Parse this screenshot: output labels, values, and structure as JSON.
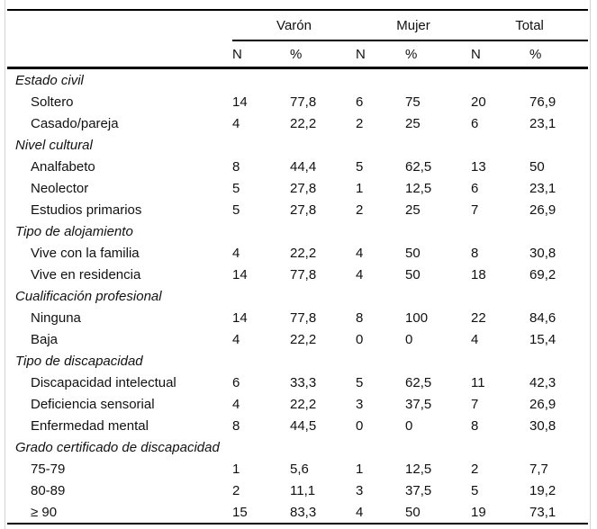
{
  "colors": {
    "rule": "#000000",
    "frame_border": "#d4d4d4",
    "text": "#111111",
    "background": "#ffffff"
  },
  "table": {
    "groups": [
      "Varón",
      "Mujer",
      "Total"
    ],
    "subheaders": [
      "N",
      "%",
      "N",
      "%",
      "N",
      "%"
    ],
    "sections": [
      {
        "title": "Estado civil",
        "rows": [
          {
            "label": "Soltero",
            "values": [
              "14",
              "77,8",
              "6",
              "75",
              "20",
              "76,9"
            ]
          },
          {
            "label": "Casado/pareja",
            "values": [
              "4",
              "22,2",
              "2",
              "25",
              "6",
              "23,1"
            ]
          }
        ]
      },
      {
        "title": "Nivel cultural",
        "rows": [
          {
            "label": "Analfabeto",
            "values": [
              "8",
              "44,4",
              "5",
              "62,5",
              "13",
              "50"
            ]
          },
          {
            "label": "Neolector",
            "values": [
              "5",
              "27,8",
              "1",
              "12,5",
              "6",
              "23,1"
            ]
          },
          {
            "label": "Estudios primarios",
            "values": [
              "5",
              "27,8",
              "2",
              "25",
              "7",
              "26,9"
            ]
          }
        ]
      },
      {
        "title": "Tipo de alojamiento",
        "rows": [
          {
            "label": "Vive con la familia",
            "values": [
              "4",
              "22,2",
              "4",
              "50",
              "8",
              "30,8"
            ]
          },
          {
            "label": "Vive en residencia",
            "values": [
              "14",
              "77,8",
              "4",
              "50",
              "18",
              "69,2"
            ]
          }
        ]
      },
      {
        "title": "Cualificación profesional",
        "rows": [
          {
            "label": "Ninguna",
            "values": [
              "14",
              "77,8",
              "8",
              "100",
              "22",
              "84,6"
            ]
          },
          {
            "label": "Baja",
            "values": [
              "4",
              "22,2",
              "0",
              "0",
              "4",
              "15,4"
            ]
          }
        ]
      },
      {
        "title": "Tipo de discapacidad",
        "rows": [
          {
            "label": "Discapacidad intelectual",
            "values": [
              "6",
              "33,3",
              "5",
              "62,5",
              "11",
              "42,3"
            ]
          },
          {
            "label": "Deficiencia sensorial",
            "values": [
              "4",
              "22,2",
              "3",
              "37,5",
              "7",
              "26,9"
            ]
          },
          {
            "label": "Enfermedad mental",
            "values": [
              "8",
              "44,5",
              "0",
              "0",
              "8",
              "30,8"
            ]
          }
        ]
      },
      {
        "title": "Grado certificado de discapacidad",
        "rows": [
          {
            "label": "75-79",
            "values": [
              "1",
              "5,6",
              "1",
              "12,5",
              "2",
              "7,7"
            ]
          },
          {
            "label": "80-89",
            "values": [
              "2",
              "11,1",
              "3",
              "37,5",
              "5",
              "19,2"
            ]
          },
          {
            "label": "≥ 90",
            "values": [
              "15",
              "83,3",
              "4",
              "50",
              "19",
              "73,1"
            ]
          }
        ]
      }
    ]
  },
  "chart_data": {
    "type": "table",
    "title": "",
    "column_groups": [
      "Varón",
      "Mujer",
      "Total"
    ],
    "columns": [
      "Varón N",
      "Varón %",
      "Mujer N",
      "Mujer %",
      "Total N",
      "Total %"
    ],
    "rows": [
      {
        "section": "Estado civil",
        "label": "Soltero",
        "values": [
          14,
          77.8,
          6,
          75,
          20,
          76.9
        ]
      },
      {
        "section": "Estado civil",
        "label": "Casado/pareja",
        "values": [
          4,
          22.2,
          2,
          25,
          6,
          23.1
        ]
      },
      {
        "section": "Nivel cultural",
        "label": "Analfabeto",
        "values": [
          8,
          44.4,
          5,
          62.5,
          13,
          50
        ]
      },
      {
        "section": "Nivel cultural",
        "label": "Neolector",
        "values": [
          5,
          27.8,
          1,
          12.5,
          6,
          23.1
        ]
      },
      {
        "section": "Nivel cultural",
        "label": "Estudios primarios",
        "values": [
          5,
          27.8,
          2,
          25,
          7,
          26.9
        ]
      },
      {
        "section": "Tipo de alojamiento",
        "label": "Vive con la familia",
        "values": [
          4,
          22.2,
          4,
          50,
          8,
          30.8
        ]
      },
      {
        "section": "Tipo de alojamiento",
        "label": "Vive en residencia",
        "values": [
          14,
          77.8,
          4,
          50,
          18,
          69.2
        ]
      },
      {
        "section": "Cualificación profesional",
        "label": "Ninguna",
        "values": [
          14,
          77.8,
          8,
          100,
          22,
          84.6
        ]
      },
      {
        "section": "Cualificación profesional",
        "label": "Baja",
        "values": [
          4,
          22.2,
          0,
          0,
          4,
          15.4
        ]
      },
      {
        "section": "Tipo de discapacidad",
        "label": "Discapacidad intelectual",
        "values": [
          6,
          33.3,
          5,
          62.5,
          11,
          42.3
        ]
      },
      {
        "section": "Tipo de discapacidad",
        "label": "Deficiencia sensorial",
        "values": [
          4,
          22.2,
          3,
          37.5,
          7,
          26.9
        ]
      },
      {
        "section": "Tipo de discapacidad",
        "label": "Enfermedad mental",
        "values": [
          8,
          44.5,
          0,
          0,
          8,
          30.8
        ]
      },
      {
        "section": "Grado certificado de discapacidad",
        "label": "75-79",
        "values": [
          1,
          5.6,
          1,
          12.5,
          2,
          7.7
        ]
      },
      {
        "section": "Grado certificado de discapacidad",
        "label": "80-89",
        "values": [
          2,
          11.1,
          3,
          37.5,
          5,
          19.2
        ]
      },
      {
        "section": "Grado certificado de discapacidad",
        "label": "≥ 90",
        "values": [
          15,
          83.3,
          4,
          50,
          19,
          73.1
        ]
      }
    ]
  }
}
